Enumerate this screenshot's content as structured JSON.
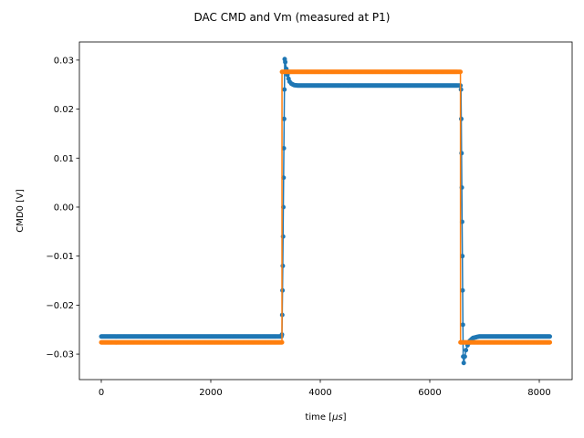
{
  "chart_data": {
    "type": "scatter",
    "title": "DAC CMD and Vm (measured at P1)",
    "xlabel_prefix": "time [",
    "xlabel_unit": "μs",
    "xlabel_suffix": "]",
    "ylabel": "CMD0 [V]",
    "xlim": [
      -400,
      8600
    ],
    "ylim": [
      -0.0352,
      0.0337
    ],
    "xticks": [
      0,
      2000,
      4000,
      6000,
      8000
    ],
    "xtick_labels": [
      "0",
      "2000",
      "4000",
      "6000",
      "8000"
    ],
    "yticks": [
      -0.03,
      -0.02,
      -0.01,
      0.0,
      0.01,
      0.02,
      0.03
    ],
    "ytick_labels": [
      "−0.03",
      "−0.02",
      "−0.01",
      "0.00",
      "0.01",
      "0.02",
      "0.03"
    ],
    "grid": false,
    "legend": "none",
    "series": [
      {
        "color": "#1f77b4",
        "marker": "point-line",
        "points": [
          [
            0,
            -0.0264
          ],
          [
            400,
            -0.0264
          ],
          [
            800,
            -0.0264
          ],
          [
            1200,
            -0.0264
          ],
          [
            1600,
            -0.0264
          ],
          [
            2000,
            -0.0264
          ],
          [
            2400,
            -0.0264
          ],
          [
            2800,
            -0.0264
          ],
          [
            3200,
            -0.0264
          ],
          [
            3290,
            -0.0264
          ],
          [
            3300,
            -0.026
          ],
          [
            3305,
            -0.022
          ],
          [
            3310,
            -0.017
          ],
          [
            3315,
            -0.012
          ],
          [
            3320,
            -0.006
          ],
          [
            3325,
            0.0
          ],
          [
            3330,
            0.006
          ],
          [
            3335,
            0.012
          ],
          [
            3340,
            0.018
          ],
          [
            3345,
            0.024
          ],
          [
            3350,
            0.0302
          ],
          [
            3360,
            0.0296
          ],
          [
            3380,
            0.0282
          ],
          [
            3400,
            0.027
          ],
          [
            3420,
            0.0262
          ],
          [
            3440,
            0.0256
          ],
          [
            3470,
            0.0252
          ],
          [
            3520,
            0.0249
          ],
          [
            3600,
            0.0248
          ],
          [
            4000,
            0.0248
          ],
          [
            4500,
            0.0248
          ],
          [
            5000,
            0.0248
          ],
          [
            5500,
            0.0248
          ],
          [
            6000,
            0.0248
          ],
          [
            6500,
            0.0248
          ],
          [
            6560,
            0.0248
          ],
          [
            6570,
            0.024
          ],
          [
            6575,
            0.018
          ],
          [
            6580,
            0.011
          ],
          [
            6585,
            0.004
          ],
          [
            6590,
            -0.003
          ],
          [
            6595,
            -0.01
          ],
          [
            6600,
            -0.017
          ],
          [
            6605,
            -0.024
          ],
          [
            6610,
            -0.0305
          ],
          [
            6620,
            -0.0318
          ],
          [
            6640,
            -0.0305
          ],
          [
            6660,
            -0.0292
          ],
          [
            6690,
            -0.0282
          ],
          [
            6730,
            -0.0273
          ],
          [
            6790,
            -0.0267
          ],
          [
            6900,
            -0.0264
          ],
          [
            7200,
            -0.0264
          ],
          [
            7600,
            -0.0264
          ],
          [
            8000,
            -0.0264
          ],
          [
            8192,
            -0.0264
          ]
        ]
      },
      {
        "color": "#ff7f0e",
        "marker": "point-line",
        "points": [
          [
            0,
            -0.0276
          ],
          [
            400,
            -0.0276
          ],
          [
            800,
            -0.0276
          ],
          [
            1200,
            -0.0276
          ],
          [
            1600,
            -0.0276
          ],
          [
            2000,
            -0.0276
          ],
          [
            2400,
            -0.0276
          ],
          [
            2800,
            -0.0276
          ],
          [
            3200,
            -0.0276
          ],
          [
            3300,
            -0.0276
          ],
          [
            3301,
            0.0276
          ],
          [
            3600,
            0.0276
          ],
          [
            4000,
            0.0276
          ],
          [
            4500,
            0.0276
          ],
          [
            5000,
            0.0276
          ],
          [
            5500,
            0.0276
          ],
          [
            6000,
            0.0276
          ],
          [
            6500,
            0.0276
          ],
          [
            6560,
            0.0276
          ],
          [
            6561,
            -0.0276
          ],
          [
            6800,
            -0.0276
          ],
          [
            7200,
            -0.0276
          ],
          [
            7600,
            -0.0276
          ],
          [
            8000,
            -0.0276
          ],
          [
            8192,
            -0.0276
          ]
        ]
      }
    ]
  }
}
